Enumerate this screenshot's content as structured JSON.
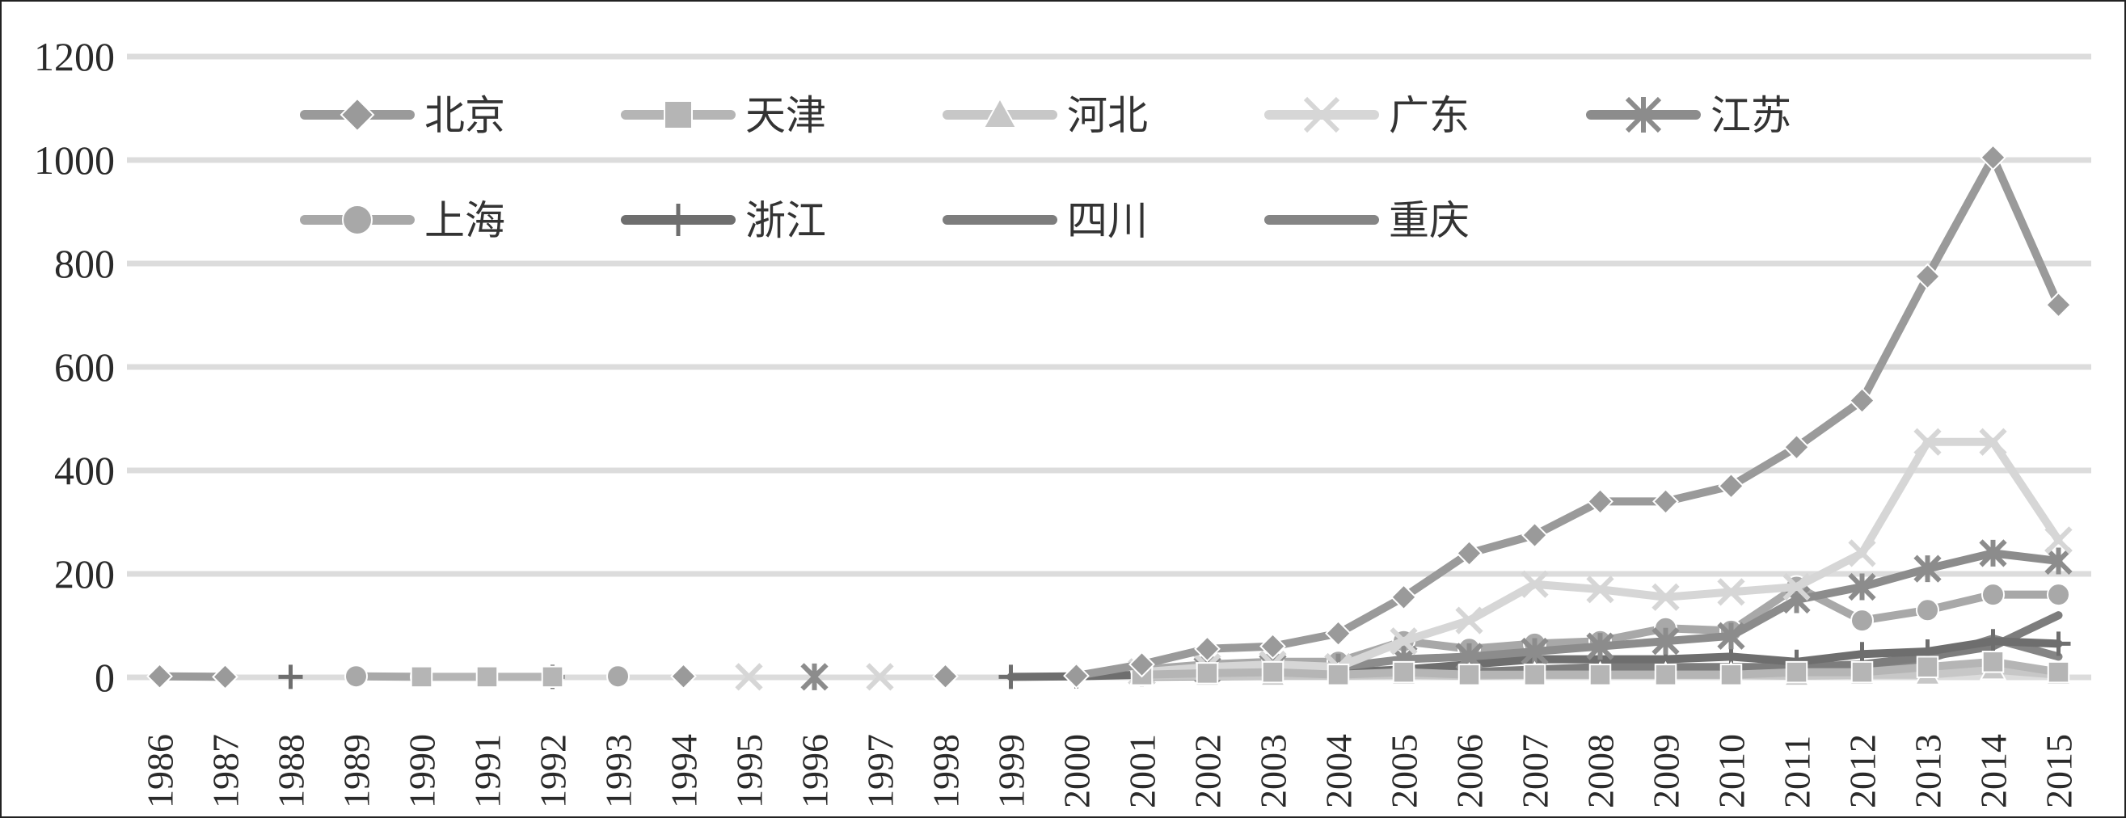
{
  "chart_data": {
    "type": "line",
    "title": "",
    "xlabel": "",
    "ylabel": "",
    "ylim": [
      0,
      1200
    ],
    "yticks": [
      0,
      200,
      400,
      600,
      800,
      1000,
      1200
    ],
    "grid": "horizontal",
    "legend_position": "top-left, inside plot, two rows",
    "x": [
      "1986",
      "1987",
      "1988",
      "1989",
      "1990",
      "1991",
      "1992",
      "1993",
      "1994",
      "1995",
      "1996",
      "1997",
      "1998",
      "1999",
      "2000",
      "2001",
      "2002",
      "2003",
      "2004",
      "2005",
      "2006",
      "2007",
      "2008",
      "2009",
      "2010",
      "2011",
      "2012",
      "2013",
      "2014",
      "2015"
    ],
    "series": [
      {
        "name": "北京",
        "color": "#9a9a9a",
        "marker": "diamond",
        "values": [
          2,
          1,
          null,
          null,
          null,
          null,
          null,
          null,
          2,
          null,
          null,
          null,
          2,
          null,
          3,
          25,
          55,
          60,
          85,
          155,
          240,
          275,
          340,
          340,
          370,
          445,
          535,
          775,
          1005,
          720
        ]
      },
      {
        "name": "天津",
        "color": "#b5b5b5",
        "marker": "square",
        "values": [
          null,
          null,
          null,
          null,
          1,
          1,
          1,
          null,
          null,
          null,
          null,
          null,
          null,
          null,
          null,
          5,
          8,
          10,
          5,
          10,
          5,
          5,
          5,
          5,
          5,
          10,
          10,
          20,
          30,
          10
        ]
      },
      {
        "name": "河北",
        "color": "#c7c7c7",
        "marker": "triangle",
        "values": [
          null,
          null,
          null,
          null,
          null,
          null,
          null,
          null,
          null,
          null,
          null,
          null,
          null,
          null,
          null,
          2,
          3,
          3,
          3,
          5,
          3,
          5,
          5,
          5,
          5,
          3,
          5,
          5,
          15,
          5
        ]
      },
      {
        "name": "广东",
        "color": "#d6d6d6",
        "marker": "x",
        "values": [
          null,
          null,
          null,
          null,
          null,
          null,
          null,
          null,
          null,
          1,
          null,
          1,
          null,
          null,
          null,
          10,
          20,
          25,
          20,
          70,
          110,
          180,
          170,
          155,
          165,
          175,
          240,
          455,
          455,
          265
        ]
      },
      {
        "name": "江苏",
        "color": "#8c8c8c",
        "marker": "asterisk",
        "values": [
          null,
          null,
          null,
          null,
          null,
          null,
          null,
          null,
          null,
          null,
          1,
          null,
          null,
          null,
          null,
          10,
          15,
          20,
          20,
          35,
          40,
          50,
          60,
          70,
          80,
          150,
          175,
          210,
          240,
          225
        ]
      },
      {
        "name": "上海",
        "color": "#a8a8a8",
        "marker": "circle",
        "values": [
          null,
          null,
          null,
          2,
          1,
          null,
          null,
          2,
          null,
          null,
          null,
          null,
          null,
          null,
          null,
          15,
          25,
          30,
          30,
          70,
          55,
          65,
          70,
          95,
          90,
          175,
          110,
          130,
          160,
          160
        ]
      },
      {
        "name": "浙江",
        "color": "#6e6e6e",
        "marker": "plus",
        "values": [
          null,
          null,
          1,
          null,
          null,
          null,
          1,
          null,
          null,
          null,
          null,
          null,
          null,
          1,
          2,
          5,
          10,
          10,
          10,
          15,
          25,
          35,
          35,
          35,
          40,
          30,
          45,
          50,
          70,
          65
        ]
      },
      {
        "name": "四川",
        "color": "#7d7d7d",
        "marker": "none",
        "values": [
          null,
          null,
          null,
          null,
          null,
          null,
          null,
          null,
          null,
          null,
          null,
          null,
          null,
          null,
          null,
          2,
          5,
          5,
          5,
          10,
          10,
          15,
          20,
          20,
          20,
          20,
          25,
          40,
          60,
          120
        ]
      },
      {
        "name": "重庆",
        "color": "#858585",
        "marker": "none",
        "values": [
          null,
          null,
          null,
          null,
          null,
          null,
          null,
          null,
          null,
          null,
          null,
          null,
          null,
          null,
          null,
          1,
          2,
          3,
          5,
          5,
          5,
          5,
          10,
          10,
          10,
          10,
          15,
          35,
          75,
          40
        ]
      }
    ]
  }
}
